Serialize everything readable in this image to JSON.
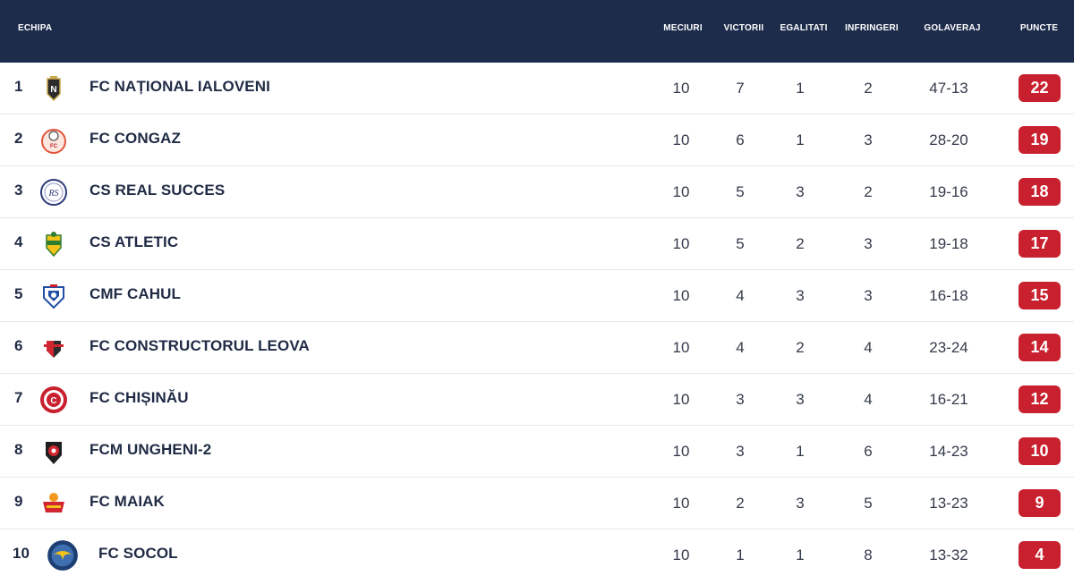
{
  "header": {
    "team": "ECHIPA",
    "meciuri": "MECIURI",
    "victorii": "VICTORII",
    "egalitati": "EGALITATI",
    "infrangeri": "INFRINGERI",
    "golaveraj": "GOLAVERAJ",
    "puncte": "PUNCTE"
  },
  "colors": {
    "header_bg": "#1e2c4c",
    "points_badge": "#c8202e"
  },
  "teams": [
    {
      "pos": "1",
      "name": "FC NAȚIONAL IALOVENI",
      "logo": "nationa-ialoveni-crest-icon",
      "meciuri": "10",
      "victorii": "7",
      "egalitati": "1",
      "infrangeri": "2",
      "golaveraj": "47-13",
      "puncte": "22"
    },
    {
      "pos": "2",
      "name": "FC CONGAZ",
      "logo": "congaz-crest-icon",
      "meciuri": "10",
      "victorii": "6",
      "egalitati": "1",
      "infrangeri": "3",
      "golaveraj": "28-20",
      "puncte": "19"
    },
    {
      "pos": "3",
      "name": "CS REAL SUCCES",
      "logo": "real-succes-crest-icon",
      "meciuri": "10",
      "victorii": "5",
      "egalitati": "3",
      "infrangeri": "2",
      "golaveraj": "19-16",
      "puncte": "18"
    },
    {
      "pos": "4",
      "name": "CS ATLETIC",
      "logo": "atletic-crest-icon",
      "meciuri": "10",
      "victorii": "5",
      "egalitati": "2",
      "infrangeri": "3",
      "golaveraj": "19-18",
      "puncte": "17"
    },
    {
      "pos": "5",
      "name": "CMF CAHUL",
      "logo": "cahul-crest-icon",
      "meciuri": "10",
      "victorii": "4",
      "egalitati": "3",
      "infrangeri": "3",
      "golaveraj": "16-18",
      "puncte": "15"
    },
    {
      "pos": "6",
      "name": "FC CONSTRUCTORUL LEOVA",
      "logo": "constructorul-leova-crest-icon",
      "meciuri": "10",
      "victorii": "4",
      "egalitati": "2",
      "infrangeri": "4",
      "golaveraj": "23-24",
      "puncte": "14"
    },
    {
      "pos": "7",
      "name": "FC CHIȘINĂU",
      "logo": "chisinau-crest-icon",
      "meciuri": "10",
      "victorii": "3",
      "egalitati": "3",
      "infrangeri": "4",
      "golaveraj": "16-21",
      "puncte": "12"
    },
    {
      "pos": "8",
      "name": "FCM UNGHENI-2",
      "logo": "ungheni-crest-icon",
      "meciuri": "10",
      "victorii": "3",
      "egalitati": "1",
      "infrangeri": "6",
      "golaveraj": "14-23",
      "puncte": "10"
    },
    {
      "pos": "9",
      "name": "FC MAIAK",
      "logo": "maiak-crest-icon",
      "meciuri": "10",
      "victorii": "2",
      "egalitati": "3",
      "infrangeri": "5",
      "golaveraj": "13-23",
      "puncte": "9"
    },
    {
      "pos": "10",
      "name": "FC SOCOL",
      "logo": "socol-crest-icon",
      "meciuri": "10",
      "victorii": "1",
      "egalitati": "1",
      "infrangeri": "8",
      "golaveraj": "13-32",
      "puncte": "4"
    }
  ]
}
